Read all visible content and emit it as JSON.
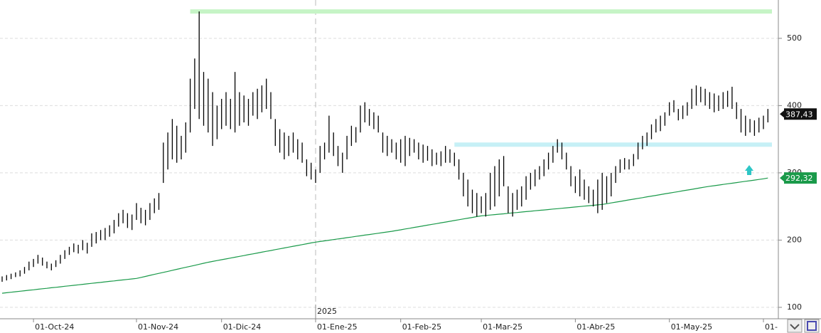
{
  "chart_data": {
    "type": "ohlc",
    "categories": [
      null,
      null,
      null,
      null,
      null,
      null,
      null,
      "01-Oct-24",
      null,
      null,
      null,
      null,
      null,
      null,
      null,
      null,
      null,
      null,
      null,
      null,
      null,
      null,
      null,
      null,
      null,
      null,
      null,
      null,
      null,
      null,
      "01-Nov-24",
      null,
      null,
      null,
      null,
      null,
      null,
      null,
      null,
      null,
      null,
      null,
      null,
      null,
      null,
      null,
      null,
      null,
      null,
      "01-Dic-24",
      null,
      null,
      null,
      null,
      null,
      null,
      null,
      null,
      null,
      null,
      null,
      null,
      null,
      null,
      null,
      null,
      null,
      null,
      null,
      null,
      "01-Ene-25",
      null,
      null,
      null,
      null,
      null,
      null,
      null,
      null,
      null,
      null,
      null,
      null,
      null,
      null,
      null,
      null,
      null,
      null,
      "01-Feb-25",
      null,
      null,
      null,
      null,
      null,
      null,
      null,
      null,
      null,
      null,
      null,
      null,
      null,
      null,
      null,
      null,
      null,
      "01-Mar-25",
      null,
      null,
      null,
      null,
      null,
      null,
      null,
      null,
      null,
      null,
      null,
      null,
      null,
      null,
      null,
      null,
      null,
      null,
      null,
      null,
      "01-Abr-25",
      null,
      null,
      null,
      null,
      null,
      null,
      null,
      null,
      null,
      null,
      null,
      null,
      null,
      null,
      null,
      null,
      null,
      null,
      null,
      null,
      "01-May-25",
      null,
      null,
      null,
      null,
      null,
      null,
      null,
      null,
      null,
      null,
      null,
      null,
      null,
      null,
      null,
      null,
      null,
      null,
      null,
      null,
      "01-",
      null
    ],
    "high": [
      146,
      148,
      150,
      152,
      155,
      160,
      168,
      172,
      178,
      174,
      168,
      165,
      170,
      178,
      185,
      190,
      195,
      193,
      200,
      196,
      210,
      212,
      215,
      218,
      222,
      230,
      240,
      245,
      240,
      238,
      255,
      248,
      245,
      255,
      262,
      270,
      345,
      360,
      380,
      370,
      355,
      375,
      440,
      470,
      540,
      450,
      440,
      420,
      400,
      410,
      420,
      410,
      450,
      420,
      415,
      410,
      420,
      425,
      430,
      440,
      420,
      380,
      365,
      360,
      355,
      360,
      350,
      345,
      320,
      315,
      305,
      340,
      345,
      385,
      360,
      340,
      330,
      355,
      370,
      368,
      400,
      405,
      395,
      390,
      385,
      360,
      355,
      350,
      345,
      350,
      355,
      352,
      350,
      345,
      342,
      340,
      335,
      330,
      332,
      340,
      335,
      330,
      320,
      300,
      290,
      275,
      270,
      265,
      270,
      300,
      310,
      320,
      325,
      280,
      270,
      275,
      280,
      295,
      300,
      305,
      310,
      320,
      330,
      340,
      350,
      345,
      330,
      310,
      295,
      305,
      290,
      280,
      275,
      290,
      300,
      295,
      300,
      310,
      320,
      322,
      320,
      328,
      345,
      355,
      360,
      372,
      380,
      385,
      390,
      405,
      408,
      395,
      400,
      405,
      425,
      430,
      428,
      425,
      420,
      418,
      415,
      420,
      422,
      428,
      405,
      395,
      385,
      380,
      378,
      382,
      385,
      395
    ],
    "low": [
      138,
      140,
      142,
      145,
      146,
      150,
      155,
      160,
      165,
      162,
      158,
      155,
      160,
      165,
      172,
      178,
      182,
      180,
      185,
      180,
      190,
      195,
      200,
      200,
      205,
      210,
      220,
      225,
      218,
      215,
      230,
      225,
      222,
      230,
      240,
      245,
      285,
      305,
      320,
      315,
      320,
      330,
      360,
      395,
      380,
      370,
      360,
      340,
      350,
      365,
      370,
      365,
      360,
      370,
      375,
      370,
      385,
      380,
      390,
      395,
      380,
      340,
      330,
      320,
      325,
      330,
      320,
      315,
      295,
      290,
      285,
      300,
      320,
      330,
      325,
      310,
      300,
      320,
      340,
      345,
      360,
      375,
      370,
      365,
      360,
      330,
      325,
      330,
      320,
      315,
      310,
      325,
      330,
      320,
      315,
      318,
      310,
      312,
      310,
      315,
      315,
      310,
      290,
      265,
      250,
      240,
      235,
      240,
      235,
      245,
      250,
      265,
      280,
      240,
      235,
      245,
      250,
      260,
      275,
      280,
      290,
      295,
      305,
      315,
      330,
      320,
      305,
      280,
      270,
      265,
      260,
      255,
      250,
      240,
      245,
      255,
      265,
      285,
      300,
      305,
      305,
      310,
      320,
      335,
      340,
      350,
      360,
      362,
      370,
      385,
      390,
      378,
      380,
      385,
      395,
      400,
      405,
      400,
      395,
      390,
      392,
      395,
      398,
      395,
      380,
      360,
      355,
      360,
      355,
      360,
      365,
      375
    ],
    "color": "#000000",
    "ma": {
      "color": "#1a9a4a",
      "values": [
        121.0,
        121.7,
        122.5,
        123.2,
        123.9,
        124.7,
        125.4,
        126.1,
        126.9,
        127.6,
        128.3,
        129.1,
        129.8,
        130.5,
        131.3,
        132.0,
        132.7,
        133.5,
        134.2,
        134.9,
        135.7,
        136.4,
        137.1,
        137.9,
        138.6,
        139.3,
        140.1,
        140.8,
        141.5,
        142.3,
        143.0,
        144.5,
        146,
        147.5,
        149,
        150.5,
        152,
        153.5,
        155,
        156.5,
        158,
        159.5,
        161,
        162.5,
        164,
        165.5,
        167,
        168.3,
        169.5,
        170.8,
        172,
        173.3,
        174.5,
        175.8,
        177,
        178.3,
        179.5,
        180.8,
        182,
        183.3,
        184.5,
        185.8,
        187,
        188.3,
        189.5,
        190.8,
        192,
        193.3,
        194.5,
        195.8,
        197,
        197.9,
        198.9,
        199.8,
        200.8,
        201.7,
        202.6,
        203.6,
        204.5,
        205.5,
        206.4,
        207.4,
        208.3,
        209.2,
        210.2,
        211.1,
        212.1,
        213,
        214.2,
        215.3,
        216.5,
        217.6,
        218.8,
        219.9,
        221.1,
        222.2,
        223.4,
        224.5,
        225.7,
        226.8,
        228,
        229.1,
        230.3,
        231.4,
        232.6,
        233.7,
        234.9,
        236,
        236.6,
        237.3,
        237.9,
        238.5,
        239.1,
        239.8,
        240.4,
        241,
        241.7,
        242.3,
        242.9,
        243.6,
        244.2,
        244.8,
        245.4,
        246.1,
        246.7,
        247.3,
        248,
        248.6,
        249.2,
        249.9,
        250.5,
        251.1,
        251.7,
        252.4,
        253,
        254.1,
        255.3,
        256.4,
        257.5,
        258.6,
        259.8,
        260.9,
        262,
        263.1,
        264.3,
        265.4,
        266.5,
        267.6,
        268.8,
        269.9,
        271,
        272.1,
        273.3,
        274.4,
        275.5,
        276.6,
        277.8,
        278.9,
        280,
        280.9,
        281.8,
        282.8,
        283.7,
        284.6,
        285.5,
        286.5,
        287.4,
        288.3,
        289.2,
        290.2,
        291.1,
        292.32
      ],
      "last": {
        "value": 292.32,
        "label": "292,32"
      }
    },
    "last_price": {
      "value": 387.43,
      "label": "387,43"
    },
    "levels": [
      {
        "value": 540,
        "color": "#c6f4c6",
        "start": 42
      },
      {
        "value": 342,
        "color": "#c6f0f6",
        "start": 101
      }
    ],
    "year_label": "2025",
    "year_start": 70,
    "ylim": [
      83,
      557
    ],
    "yticks": [
      100,
      200,
      300,
      400,
      500
    ],
    "grid": true
  }
}
